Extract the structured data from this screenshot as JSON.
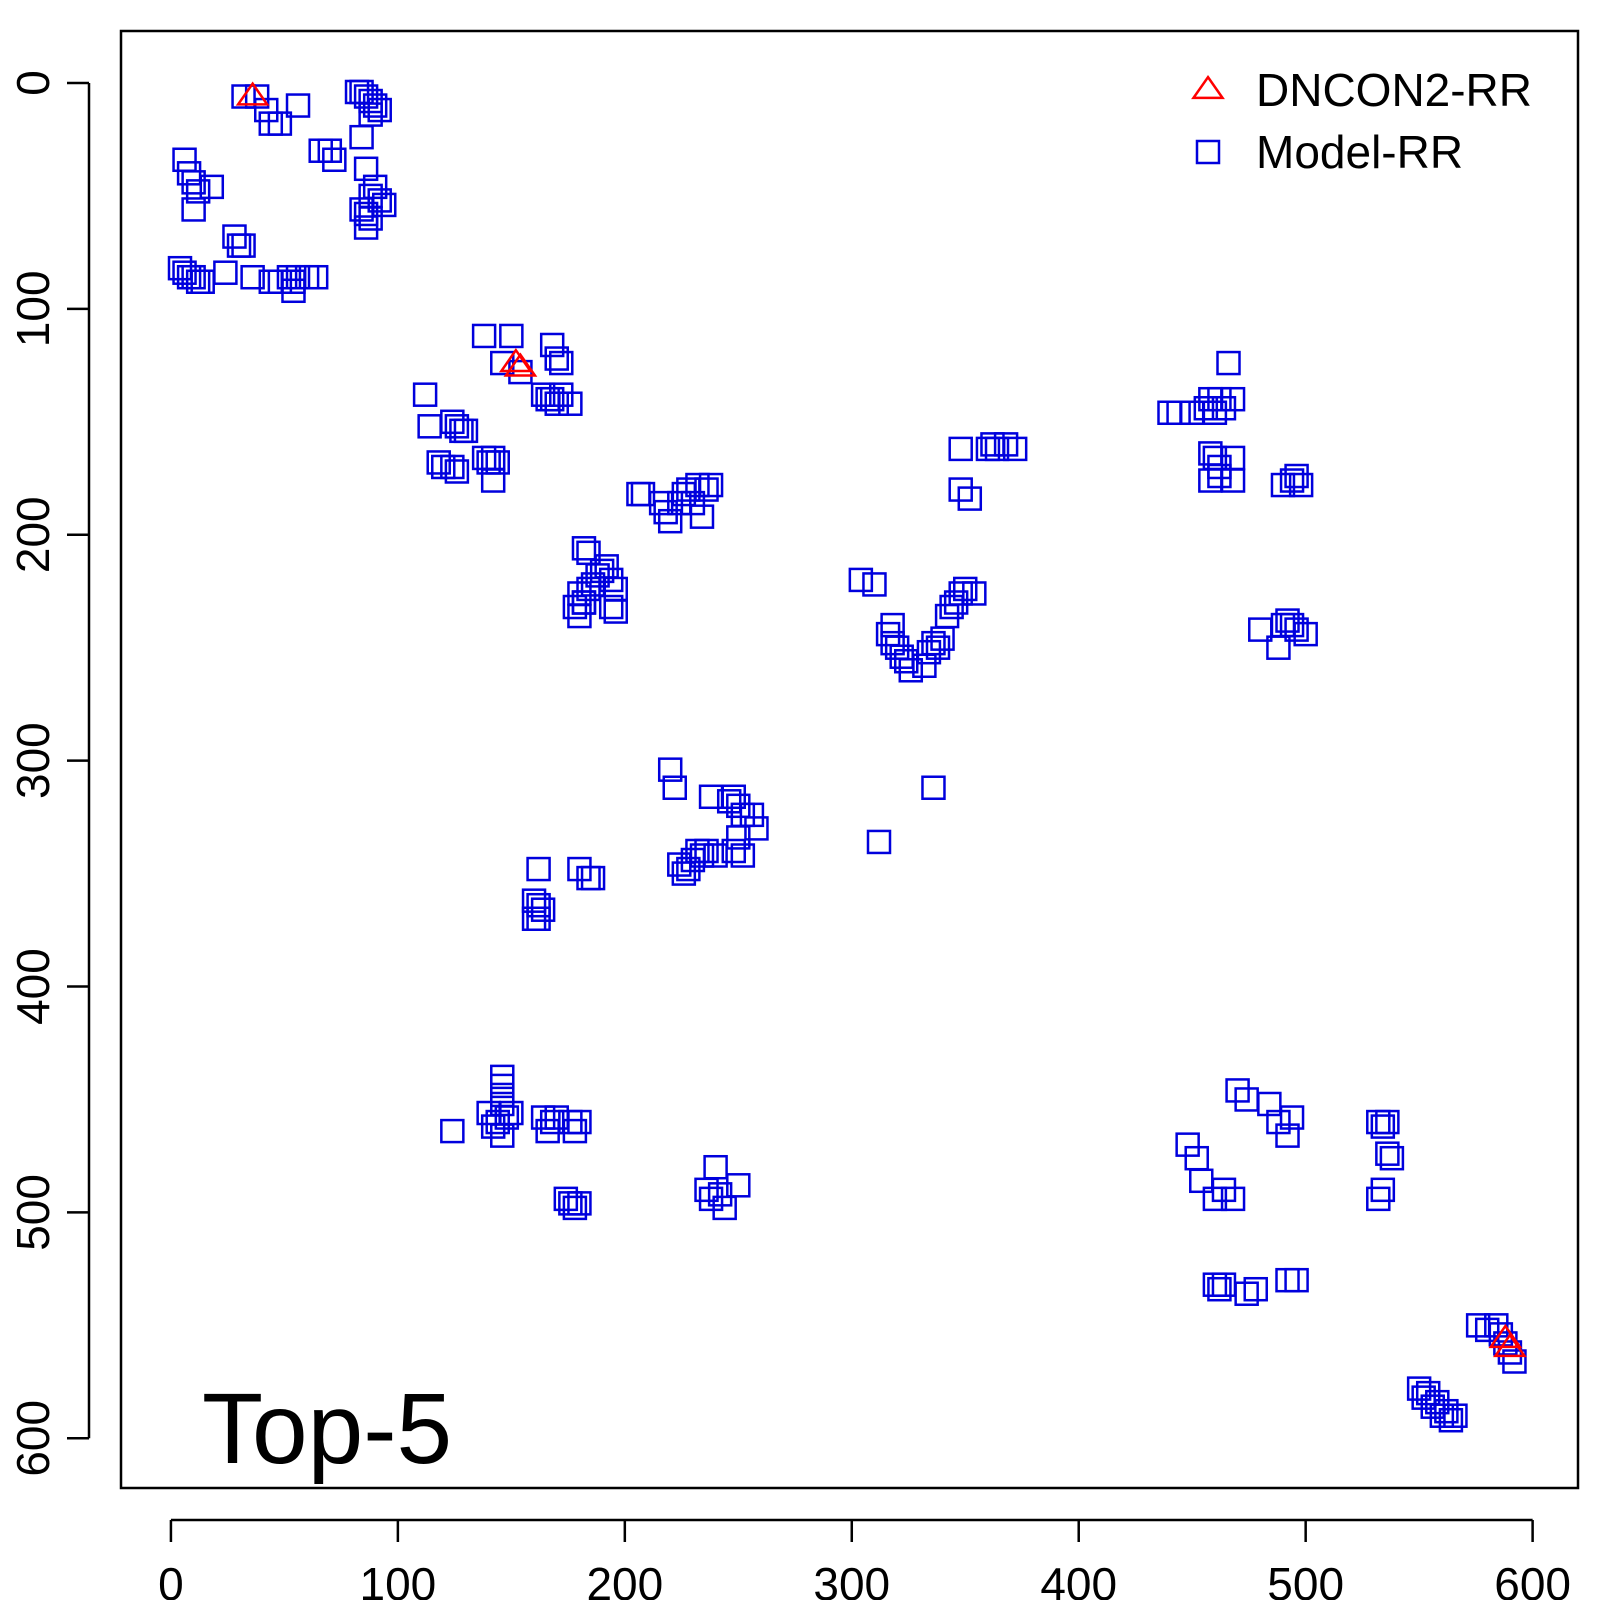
{
  "chart_data": {
    "type": "scatter",
    "title": "",
    "xlabel": "",
    "ylabel": "",
    "xlim": [
      -22,
      620
    ],
    "ylim": [
      622,
      -23
    ],
    "y_reversed": true,
    "x_ticks": [
      "0",
      "100",
      "200",
      "300",
      "400",
      "500",
      "600"
    ],
    "y_ticks": [
      "0",
      "100",
      "200",
      "300",
      "400",
      "500",
      "600"
    ],
    "annotation": "Top-5",
    "legend_position": "top-right",
    "series": [
      {
        "name": "DNCON2-RR",
        "marker": "triangle",
        "color": "#ff0000",
        "points": [
          [
            36,
            6
          ],
          [
            152,
            124
          ],
          [
            154,
            126
          ],
          [
            588,
            556
          ],
          [
            590,
            560
          ]
        ]
      },
      {
        "name": "Model-RR",
        "marker": "square",
        "color": "#0000dd",
        "points": [
          [
            32,
            6
          ],
          [
            38,
            6
          ],
          [
            42,
            12
          ],
          [
            44,
            18
          ],
          [
            48,
            18
          ],
          [
            56,
            10
          ],
          [
            82,
            4
          ],
          [
            84,
            4
          ],
          [
            86,
            6
          ],
          [
            88,
            8
          ],
          [
            90,
            10
          ],
          [
            92,
            12
          ],
          [
            88,
            14
          ],
          [
            84,
            24
          ],
          [
            66,
            30
          ],
          [
            70,
            30
          ],
          [
            72,
            34
          ],
          [
            86,
            38
          ],
          [
            90,
            46
          ],
          [
            88,
            50
          ],
          [
            92,
            52
          ],
          [
            94,
            54
          ],
          [
            84,
            56
          ],
          [
            86,
            58
          ],
          [
            88,
            60
          ],
          [
            86,
            64
          ],
          [
            6,
            34
          ],
          [
            8,
            40
          ],
          [
            10,
            44
          ],
          [
            12,
            48
          ],
          [
            10,
            56
          ],
          [
            18,
            46
          ],
          [
            28,
            68
          ],
          [
            30,
            72
          ],
          [
            32,
            72
          ],
          [
            24,
            84
          ],
          [
            4,
            82
          ],
          [
            6,
            84
          ],
          [
            8,
            86
          ],
          [
            10,
            86
          ],
          [
            12,
            88
          ],
          [
            14,
            88
          ],
          [
            36,
            86
          ],
          [
            44,
            88
          ],
          [
            48,
            88
          ],
          [
            52,
            86
          ],
          [
            54,
            88
          ],
          [
            56,
            86
          ],
          [
            60,
            86
          ],
          [
            64,
            86
          ],
          [
            54,
            92
          ],
          [
            138,
            112
          ],
          [
            150,
            112
          ],
          [
            146,
            124
          ],
          [
            154,
            128
          ],
          [
            168,
            116
          ],
          [
            170,
            122
          ],
          [
            172,
            124
          ],
          [
            112,
            138
          ],
          [
            114,
            152
          ],
          [
            124,
            150
          ],
          [
            126,
            152
          ],
          [
            128,
            154
          ],
          [
            130,
            154
          ],
          [
            118,
            168
          ],
          [
            120,
            170
          ],
          [
            124,
            170
          ],
          [
            126,
            172
          ],
          [
            138,
            166
          ],
          [
            140,
            168
          ],
          [
            142,
            166
          ],
          [
            144,
            168
          ],
          [
            142,
            176
          ],
          [
            164,
            138
          ],
          [
            166,
            140
          ],
          [
            168,
            140
          ],
          [
            170,
            142
          ],
          [
            172,
            138
          ],
          [
            176,
            142
          ],
          [
            206,
            182
          ],
          [
            208,
            182
          ],
          [
            216,
            186
          ],
          [
            218,
            190
          ],
          [
            220,
            194
          ],
          [
            224,
            186
          ],
          [
            226,
            182
          ],
          [
            228,
            180
          ],
          [
            230,
            186
          ],
          [
            232,
            178
          ],
          [
            234,
            192
          ],
          [
            236,
            180
          ],
          [
            238,
            178
          ],
          [
            182,
            206
          ],
          [
            184,
            208
          ],
          [
            180,
            226
          ],
          [
            182,
            230
          ],
          [
            184,
            224
          ],
          [
            186,
            222
          ],
          [
            188,
            218
          ],
          [
            190,
            216
          ],
          [
            192,
            214
          ],
          [
            194,
            220
          ],
          [
            196,
            224
          ],
          [
            178,
            232
          ],
          [
            180,
            236
          ],
          [
            182,
            230
          ],
          [
            194,
            232
          ],
          [
            196,
            234
          ],
          [
            304,
            220
          ],
          [
            310,
            222
          ],
          [
            318,
            240
          ],
          [
            316,
            244
          ],
          [
            318,
            248
          ],
          [
            320,
            250
          ],
          [
            322,
            254
          ],
          [
            324,
            256
          ],
          [
            326,
            260
          ],
          [
            332,
            258
          ],
          [
            334,
            252
          ],
          [
            336,
            248
          ],
          [
            338,
            250
          ],
          [
            340,
            246
          ],
          [
            342,
            236
          ],
          [
            344,
            232
          ],
          [
            346,
            230
          ],
          [
            348,
            226
          ],
          [
            350,
            224
          ],
          [
            354,
            226
          ],
          [
            348,
            162
          ],
          [
            360,
            162
          ],
          [
            362,
            160
          ],
          [
            364,
            162
          ],
          [
            368,
            160
          ],
          [
            372,
            162
          ],
          [
            348,
            180
          ],
          [
            352,
            184
          ],
          [
            440,
            146
          ],
          [
            444,
            146
          ],
          [
            450,
            146
          ],
          [
            456,
            144
          ],
          [
            458,
            140
          ],
          [
            460,
            146
          ],
          [
            462,
            140
          ],
          [
            464,
            144
          ],
          [
            468,
            140
          ],
          [
            466,
            124
          ],
          [
            458,
            164
          ],
          [
            460,
            166
          ],
          [
            462,
            170
          ],
          [
            458,
            176
          ],
          [
            462,
            174
          ],
          [
            468,
            166
          ],
          [
            468,
            176
          ],
          [
            490,
            178
          ],
          [
            494,
            176
          ],
          [
            496,
            174
          ],
          [
            498,
            178
          ],
          [
            480,
            242
          ],
          [
            488,
            250
          ],
          [
            490,
            240
          ],
          [
            492,
            238
          ],
          [
            494,
            240
          ],
          [
            496,
            242
          ],
          [
            500,
            244
          ],
          [
            220,
            304
          ],
          [
            222,
            312
          ],
          [
            238,
            316
          ],
          [
            246,
            318
          ],
          [
            248,
            316
          ],
          [
            250,
            320
          ],
          [
            252,
            324
          ],
          [
            256,
            324
          ],
          [
            258,
            330
          ],
          [
            250,
            334
          ],
          [
            248,
            340
          ],
          [
            252,
            342
          ],
          [
            224,
            346
          ],
          [
            226,
            350
          ],
          [
            228,
            348
          ],
          [
            230,
            344
          ],
          [
            232,
            340
          ],
          [
            234,
            342
          ],
          [
            236,
            340
          ],
          [
            240,
            342
          ],
          [
            162,
            348
          ],
          [
            160,
            362
          ],
          [
            162,
            364
          ],
          [
            164,
            366
          ],
          [
            160,
            370
          ],
          [
            162,
            370
          ],
          [
            180,
            348
          ],
          [
            184,
            352
          ],
          [
            186,
            352
          ],
          [
            312,
            336
          ],
          [
            336,
            312
          ],
          [
            124,
            464
          ],
          [
            140,
            456
          ],
          [
            142,
            462
          ],
          [
            144,
            460
          ],
          [
            146,
            466
          ],
          [
            148,
            458
          ],
          [
            150,
            456
          ],
          [
            146,
            440
          ],
          [
            146,
            444
          ],
          [
            146,
            448
          ],
          [
            146,
            452
          ],
          [
            164,
            458
          ],
          [
            166,
            464
          ],
          [
            168,
            460
          ],
          [
            170,
            458
          ],
          [
            176,
            460
          ],
          [
            178,
            464
          ],
          [
            180,
            460
          ],
          [
            174,
            494
          ],
          [
            176,
            496
          ],
          [
            178,
            498
          ],
          [
            180,
            496
          ],
          [
            236,
            490
          ],
          [
            238,
            494
          ],
          [
            240,
            480
          ],
          [
            242,
            492
          ],
          [
            244,
            498
          ],
          [
            250,
            488
          ],
          [
            448,
            470
          ],
          [
            452,
            476
          ],
          [
            454,
            486
          ],
          [
            460,
            494
          ],
          [
            464,
            490
          ],
          [
            468,
            494
          ],
          [
            470,
            446
          ],
          [
            474,
            450
          ],
          [
            484,
            452
          ],
          [
            488,
            460
          ],
          [
            492,
            466
          ],
          [
            494,
            458
          ],
          [
            532,
            460
          ],
          [
            534,
            462
          ],
          [
            536,
            460
          ],
          [
            536,
            474
          ],
          [
            538,
            476
          ],
          [
            532,
            494
          ],
          [
            534,
            490
          ],
          [
            460,
            532
          ],
          [
            462,
            534
          ],
          [
            464,
            532
          ],
          [
            474,
            536
          ],
          [
            478,
            534
          ],
          [
            492,
            530
          ],
          [
            496,
            530
          ],
          [
            576,
            550
          ],
          [
            580,
            552
          ],
          [
            584,
            550
          ],
          [
            586,
            554
          ],
          [
            588,
            558
          ],
          [
            590,
            562
          ],
          [
            592,
            566
          ],
          [
            550,
            578
          ],
          [
            552,
            582
          ],
          [
            554,
            580
          ],
          [
            556,
            586
          ],
          [
            558,
            584
          ],
          [
            560,
            590
          ],
          [
            562,
            588
          ],
          [
            564,
            592
          ],
          [
            566,
            590
          ]
        ]
      }
    ]
  }
}
